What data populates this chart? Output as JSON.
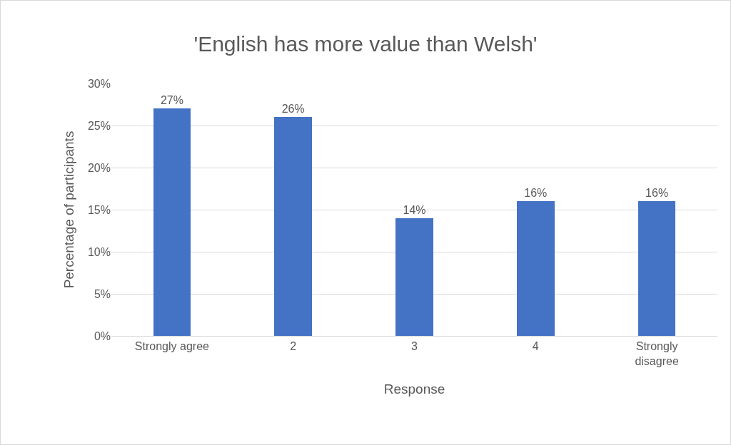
{
  "chart_data": {
    "type": "bar",
    "title": "'English has more value than Welsh'",
    "xlabel": "Response",
    "ylabel": "Percentage of participants",
    "categories": [
      "Strongly agree",
      "2",
      "3",
      "4",
      "Strongly disagree"
    ],
    "values": [
      27,
      26,
      14,
      16,
      16
    ],
    "color": "#4472c4",
    "value_labels": [
      "27%",
      "26%",
      "14%",
      "16%",
      "16%"
    ],
    "ylim": [
      0,
      30
    ],
    "yticks": [
      {
        "value": 0,
        "label": "0%"
      },
      {
        "value": 5,
        "label": "5%"
      },
      {
        "value": 10,
        "label": "10%"
      },
      {
        "value": 15,
        "label": "15%"
      },
      {
        "value": 20,
        "label": "20%"
      },
      {
        "value": 25,
        "label": "25%"
      },
      {
        "value": 30,
        "label": "30%"
      }
    ],
    "grid": "y",
    "legend": false
  }
}
